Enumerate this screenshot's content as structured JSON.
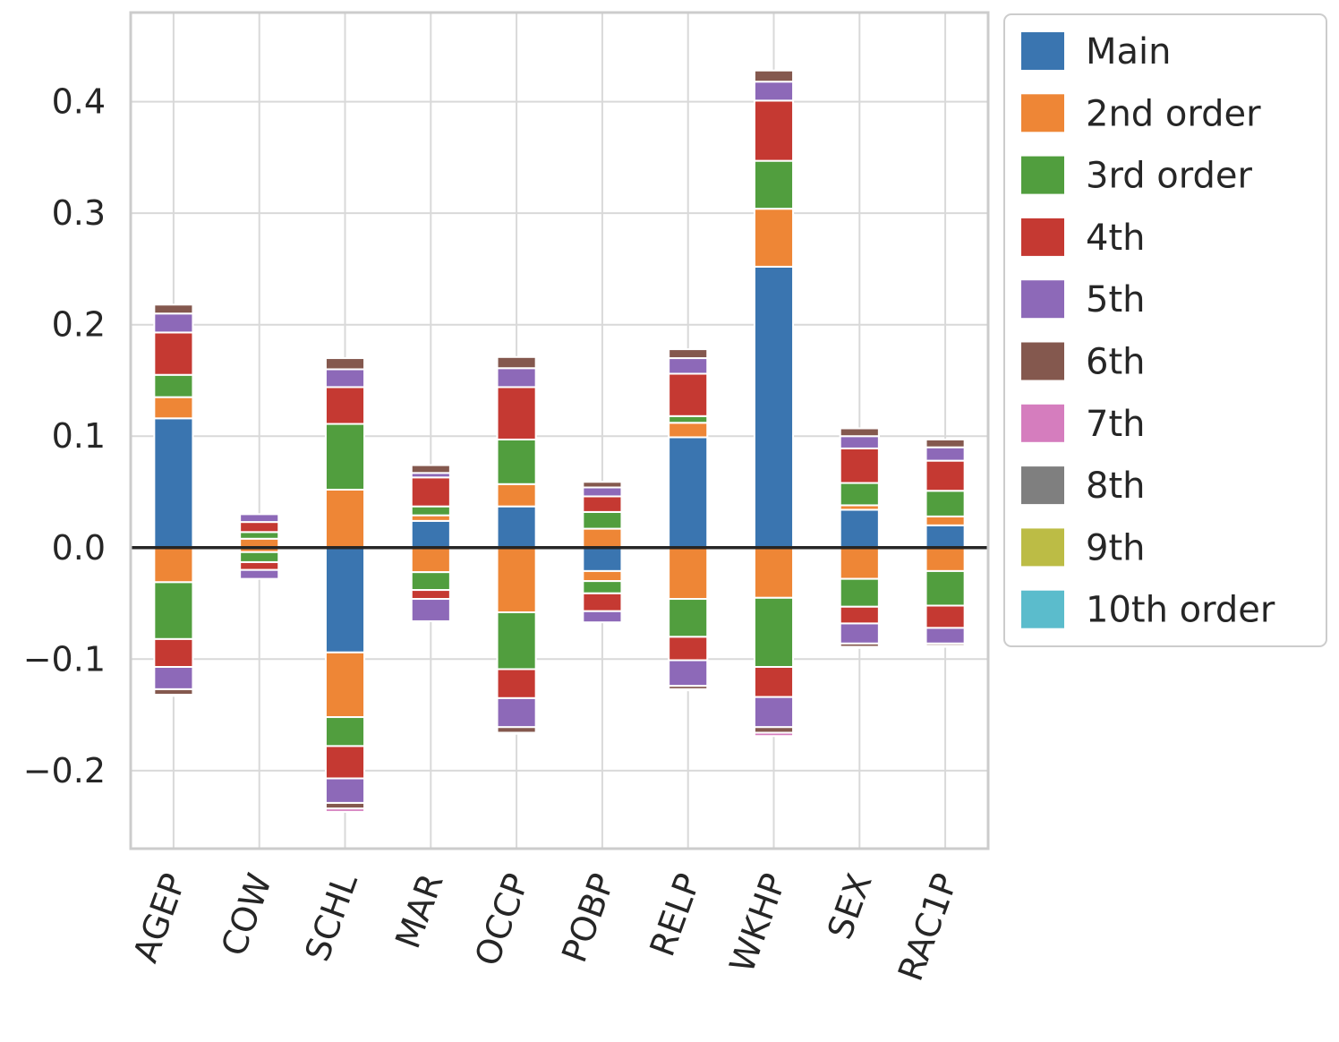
{
  "chart_data": {
    "type": "bar",
    "stacked": true,
    "diverging": true,
    "categories": [
      "AGEP",
      "COW",
      "SCHL",
      "MAR",
      "OCCP",
      "POBP",
      "RELP",
      "WKHP",
      "SEX",
      "RAC1P"
    ],
    "ylim": [
      -0.27,
      0.48
    ],
    "yticks": [
      -0.2,
      -0.1,
      0.0,
      0.1,
      0.2,
      0.3,
      0.4
    ],
    "ytick_labels": [
      "−0.2",
      "−0.1",
      "0.0",
      "0.1",
      "0.2",
      "0.3",
      "0.4"
    ],
    "grid": true,
    "zero_line": true,
    "legend_position": "outside-right-top",
    "series": [
      {
        "name": "Main",
        "color": "#3a75b0",
        "positive": [
          0.116,
          0.0,
          0.0,
          0.024,
          0.037,
          0.0,
          0.099,
          0.252,
          0.034,
          0.02
        ],
        "negative": [
          0.0,
          0.0,
          -0.094,
          0.0,
          0.0,
          -0.021,
          0.0,
          0.0,
          0.0,
          0.0
        ]
      },
      {
        "name": "2nd order",
        "color": "#ee8636",
        "positive": [
          0.019,
          0.008,
          0.052,
          0.005,
          0.02,
          0.017,
          0.013,
          0.052,
          0.004,
          0.008
        ],
        "negative": [
          -0.031,
          -0.004,
          -0.058,
          -0.022,
          -0.058,
          -0.009,
          -0.046,
          -0.045,
          -0.028,
          -0.021
        ]
      },
      {
        "name": "3rd order",
        "color": "#519e3e",
        "positive": [
          0.02,
          0.006,
          0.059,
          0.008,
          0.04,
          0.015,
          0.006,
          0.043,
          0.02,
          0.023
        ],
        "negative": [
          -0.051,
          -0.009,
          -0.026,
          -0.016,
          -0.051,
          -0.011,
          -0.034,
          -0.062,
          -0.025,
          -0.031
        ]
      },
      {
        "name": "4th",
        "color": "#c53932",
        "positive": [
          0.038,
          0.009,
          0.033,
          0.026,
          0.047,
          0.014,
          0.038,
          0.054,
          0.031,
          0.027
        ],
        "negative": [
          -0.025,
          -0.007,
          -0.029,
          -0.008,
          -0.026,
          -0.016,
          -0.021,
          -0.027,
          -0.015,
          -0.02
        ]
      },
      {
        "name": "5th",
        "color": "#8d69b8",
        "positive": [
          0.017,
          0.007,
          0.016,
          0.004,
          0.017,
          0.008,
          0.014,
          0.017,
          0.011,
          0.012
        ],
        "negative": [
          -0.02,
          -0.008,
          -0.022,
          -0.02,
          -0.026,
          -0.01,
          -0.023,
          -0.027,
          -0.018,
          -0.014
        ]
      },
      {
        "name": "6th",
        "color": "#84584e",
        "positive": [
          0.008,
          0.0,
          0.01,
          0.007,
          0.01,
          0.005,
          0.008,
          0.01,
          0.007,
          0.007
        ],
        "negative": [
          -0.005,
          0.0,
          -0.005,
          0.0,
          -0.005,
          0.0,
          -0.003,
          -0.005,
          -0.003,
          -0.002
        ]
      },
      {
        "name": "7th",
        "color": "#d57dbe",
        "positive": [
          0.0,
          0.0,
          0.0,
          0.0,
          0.0,
          0.0,
          0.0,
          0.0,
          0.0,
          0.0
        ],
        "negative": [
          -0.001,
          0.0,
          -0.003,
          0.0,
          -0.001,
          0.0,
          -0.001,
          -0.003,
          -0.001,
          -0.001
        ]
      },
      {
        "name": "8th",
        "color": "#7f7f7f",
        "positive": [
          0.0,
          0.0,
          0.0,
          0.0,
          0.0,
          0.0,
          0.0,
          0.0,
          0.0,
          0.0
        ],
        "negative": [
          0.0,
          0.0,
          0.0,
          0.0,
          0.0,
          0.0,
          0.0,
          0.0,
          0.0,
          0.0
        ]
      },
      {
        "name": "9th",
        "color": "#bcbc45",
        "positive": [
          0.0,
          0.0,
          0.0,
          0.0,
          0.0,
          0.0,
          0.0,
          0.0,
          0.0,
          0.0
        ],
        "negative": [
          0.0,
          0.0,
          0.0,
          0.0,
          0.0,
          0.0,
          0.0,
          0.0,
          0.0,
          0.0
        ]
      },
      {
        "name": "10th order",
        "color": "#5bbccc",
        "positive": [
          0.0,
          0.0,
          0.0,
          0.0,
          0.0,
          0.0,
          0.0,
          0.0,
          0.0,
          0.0
        ],
        "negative": [
          0.0,
          0.0,
          0.0,
          0.0,
          0.0,
          0.0,
          0.0,
          0.0,
          0.0,
          0.0
        ]
      }
    ]
  },
  "colors": {
    "background": "#ffffff",
    "grid": "#d9d9d9",
    "axes_frame": "#cccccc",
    "zero_line": "#262626",
    "text": "#262626"
  }
}
